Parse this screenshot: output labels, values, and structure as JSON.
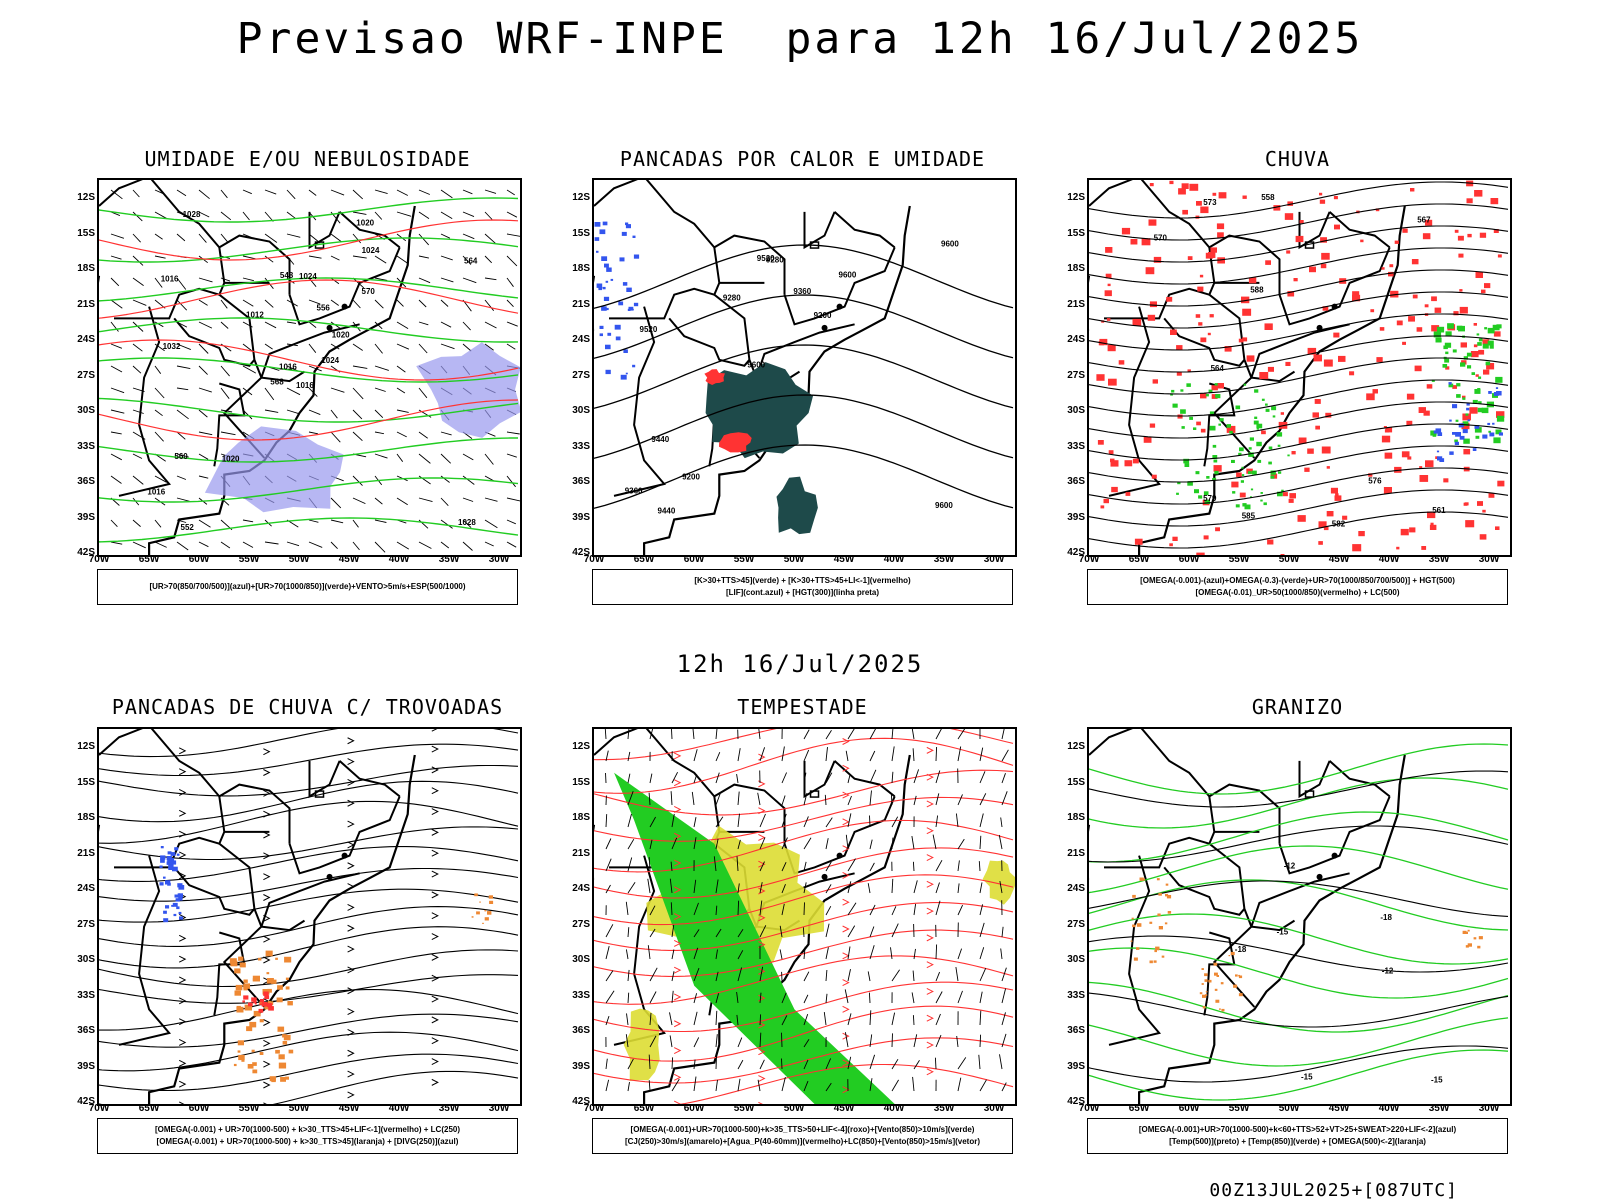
{
  "main_title": "Previsao WRF-INPE  para 12h 16/Jul/2025",
  "mid_title": "12h 16/Jul/2025",
  "footer": "00Z13JUL2025+[087UTC]",
  "lat_labels": [
    "12S",
    "15S",
    "18S",
    "21S",
    "24S",
    "27S",
    "30S",
    "33S",
    "36S",
    "39S",
    "42S"
  ],
  "lon_labels": [
    "70W",
    "65W",
    "60W",
    "55W",
    "50W",
    "45W",
    "40W",
    "35W",
    "30W"
  ],
  "panels": [
    {
      "title": "UMIDADE E/OU NEBULOSIDADE",
      "legend": [
        "[UR>70(850/700/500)](azul)+[UR>70(1000/850)](verde)+VENTO>5m/s+ESP(500/1000)"
      ],
      "contour_labels": [
        "1016",
        "1016",
        "1016",
        "1016",
        "1020",
        "1020",
        "1020",
        "1024",
        "1024",
        "1024",
        "1028",
        "1028",
        "1032",
        "564",
        "568",
        "570",
        "552",
        "548",
        "556",
        "560",
        "1012"
      ]
    },
    {
      "title": "PANCADAS POR CALOR E UMIDADE",
      "legend": [
        "[K>30+TTS>45](verde) + [K>30+TTS>45+LI<-1](vermelho)",
        "[LIF](cont.azul) + [HGT(300)](linha preta)"
      ],
      "contour_labels": [
        "9600",
        "9520",
        "9600",
        "9600",
        "9600",
        "9440",
        "9520",
        "9360",
        "9440",
        "9280",
        "9360",
        "9200",
        "9280",
        "9200"
      ]
    },
    {
      "title": "CHUVA",
      "legend": [
        "[OMEGA(-0.001)-(azul)+OMEGA(-0.3)-(verde)+UR>70(1000/850/700/500)] + HGT(500)",
        "[OMEGA(-0.01)_UR>50(1000/850)(vermelho) + LC(500)"
      ],
      "contour_labels": [
        "585",
        "582",
        "579",
        "576",
        "573",
        "570",
        "564",
        "561",
        "558",
        "588",
        "567"
      ]
    },
    {
      "title": "PANCADAS DE CHUVA C/ TROVOADAS",
      "legend": [
        "[OMEGA(-0.001) + UR>70(1000-500) + k>30_TTS>45+LIF<-1](vermelho) + LC(250)",
        "[OMEGA(-0.001) + UR>70(1000-500) + k>30_TTS>45](laranja) + [DIVG(250)](azul)"
      ],
      "contour_labels": []
    },
    {
      "title": "TEMPESTADE",
      "legend": [
        "[OMEGA(-0.001)+UR>70(1000-500)+k>35_TTS>50+LIF<-4](roxo)+[Vento(850)>10m/s](verde)",
        "[CJ(250)>30m/s](amarelo)+[Agua_P(40-60mm)](vermelho)+LC(850)+[Vento(850)>15m/s](vetor)"
      ],
      "contour_labels": []
    },
    {
      "title": "GRANIZO",
      "legend": [
        "[OMEGA(-0.001)+UR>70(1000-500)+k<60+TTS>52+VT>25+SWEAT>220+LIF<-2](azul)",
        "[Temp(500)](preto) + [Temp(850)](verde) + [OMEGA(500)<-2](laranja)"
      ],
      "contour_labels": [
        "-12",
        "-15",
        "-12",
        "-15",
        "-18",
        "-15",
        "-18"
      ]
    }
  ],
  "colors": {
    "blue": "#3355ee",
    "green": "#22cc22",
    "red": "#ff3333",
    "orange": "#ee8833",
    "yellow": "#dddd33",
    "dark_teal": "#1e4a4a",
    "lavender": "#9999ee",
    "black": "#000000"
  }
}
